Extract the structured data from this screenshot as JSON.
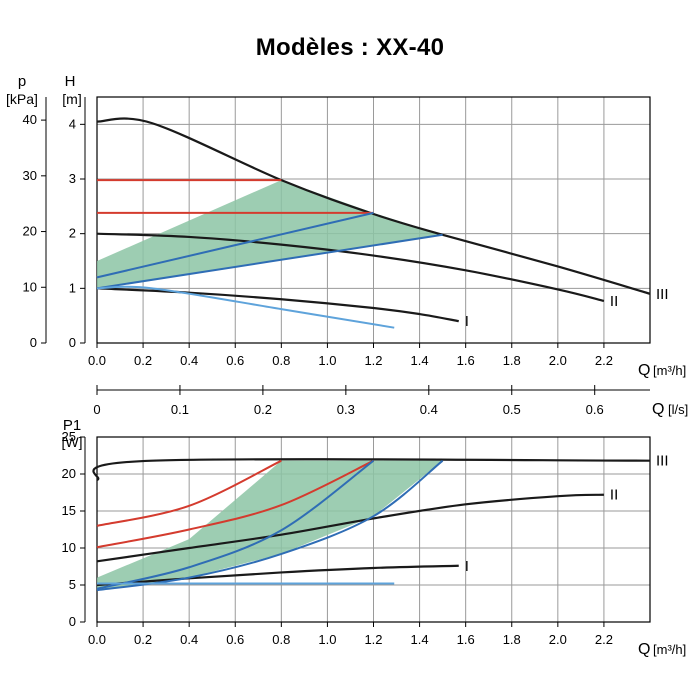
{
  "title": "Modèles : XX-40",
  "chart_data": [
    {
      "type": "line",
      "name": "head-curve",
      "x_label": "Q",
      "x_unit": "[m³/h]",
      "x_ticks": [
        "0.0",
        "0.2",
        "0.4",
        "0.6",
        "0.8",
        "1.0",
        "1.2",
        "1.4",
        "1.6",
        "1.8",
        "2.0",
        "2.2"
      ],
      "xlim": [
        0,
        2.4
      ],
      "y_label": "H",
      "y_unit": "[m]",
      "y_ticks": [
        "0",
        "1",
        "2",
        "3",
        "4"
      ],
      "ylim": [
        0,
        4.5
      ],
      "y2_label": "p",
      "y2_unit": "[kPa]",
      "y2_ticks": [
        "0",
        "10",
        "20",
        "30",
        "40"
      ],
      "series": [
        {
          "name": "III",
          "kind": "fixed-speed",
          "color": "#1a1a1a",
          "points": [
            [
              0,
              4.05
            ],
            [
              0.24,
              4.02
            ],
            [
              0.8,
              2.98
            ],
            [
              1.2,
              2.36
            ],
            [
              1.5,
              1.98
            ],
            [
              2.0,
              1.4
            ],
            [
              2.4,
              0.9
            ]
          ]
        },
        {
          "name": "II",
          "kind": "fixed-speed",
          "color": "#1a1a1a",
          "points": [
            [
              0,
              2.0
            ],
            [
              0.4,
              1.94
            ],
            [
              0.8,
              1.8
            ],
            [
              1.2,
              1.6
            ],
            [
              1.6,
              1.33
            ],
            [
              2.0,
              0.98
            ],
            [
              2.2,
              0.77
            ]
          ]
        },
        {
          "name": "I",
          "kind": "fixed-speed",
          "color": "#1a1a1a",
          "points": [
            [
              0,
              1.0
            ],
            [
              0.4,
              0.92
            ],
            [
              0.8,
              0.8
            ],
            [
              1.2,
              0.64
            ],
            [
              1.4,
              0.53
            ],
            [
              1.57,
              0.4
            ]
          ]
        },
        {
          "name": "constant-pressure-high",
          "kind": "constant-pressure",
          "color": "#d43b2e",
          "points": [
            [
              0,
              2.98
            ],
            [
              0.8,
              2.98
            ]
          ]
        },
        {
          "name": "constant-pressure-low",
          "kind": "constant-pressure",
          "color": "#d43b2e",
          "points": [
            [
              0,
              2.38
            ],
            [
              1.2,
              2.38
            ]
          ]
        },
        {
          "name": "proportional-high",
          "kind": "proportional-pressure",
          "color": "#2f6db5",
          "points": [
            [
              0,
              1.2
            ],
            [
              1.2,
              2.38
            ]
          ]
        },
        {
          "name": "proportional-low",
          "kind": "proportional-pressure",
          "color": "#2f6db5",
          "points": [
            [
              0,
              1.0
            ],
            [
              1.5,
              1.98
            ]
          ]
        },
        {
          "name": "autoadapt-min",
          "kind": "minimum-curve",
          "color": "#5ea3db",
          "points": [
            [
              0,
              1.0
            ],
            [
              0.24,
              1.0
            ],
            [
              0.8,
              0.62
            ],
            [
              1.29,
              0.28
            ]
          ]
        }
      ],
      "area": {
        "name": "autoadapt-area",
        "color": "#8cc4a4",
        "points": [
          [
            0,
            1.5
          ],
          [
            0.8,
            2.98
          ],
          [
            1.2,
            2.38
          ],
          [
            1.5,
            1.98
          ],
          [
            0,
            1.0
          ]
        ]
      },
      "curve_labels": [
        "I",
        "II",
        "III"
      ]
    },
    {
      "type": "axis",
      "name": "flow-ls-axis",
      "x_label": "Q",
      "x_unit": "[l/s]",
      "x_ticks": [
        "0",
        "0.1",
        "0.2",
        "0.3",
        "0.4",
        "0.5",
        "0.6"
      ],
      "xlim": [
        0,
        0.6667
      ]
    },
    {
      "type": "line",
      "name": "power-curve",
      "x_label": "Q",
      "x_unit": "[m³/h]",
      "x_ticks": [
        "0.0",
        "0.2",
        "0.4",
        "0.6",
        "0.8",
        "1.0",
        "1.2",
        "1.4",
        "1.6",
        "1.8",
        "2.0",
        "2.2"
      ],
      "xlim": [
        0,
        2.4
      ],
      "y_label": "P1",
      "y_unit": "[W]",
      "y_ticks": [
        "0",
        "5",
        "10",
        "15",
        "20",
        "25"
      ],
      "ylim": [
        0,
        25
      ],
      "series": [
        {
          "name": "III",
          "kind": "fixed-speed",
          "color": "#1a1a1a",
          "points": [
            [
              0,
              19.2
            ],
            [
              0.24,
              21.8
            ],
            [
              2.4,
              21.8
            ]
          ]
        },
        {
          "name": "II",
          "kind": "fixed-speed",
          "color": "#1a1a1a",
          "points": [
            [
              0,
              8.2
            ],
            [
              0.4,
              10.0
            ],
            [
              0.8,
              11.8
            ],
            [
              1.2,
              14.0
            ],
            [
              1.6,
              15.9
            ],
            [
              2.0,
              17.0
            ],
            [
              2.2,
              17.2
            ]
          ]
        },
        {
          "name": "I",
          "kind": "fixed-speed",
          "color": "#1a1a1a",
          "points": [
            [
              0,
              5.0
            ],
            [
              0.4,
              5.9
            ],
            [
              0.8,
              6.7
            ],
            [
              1.2,
              7.3
            ],
            [
              1.57,
              7.6
            ]
          ]
        },
        {
          "name": "constant-pressure-high",
          "kind": "constant-pressure",
          "color": "#d43b2e",
          "points": [
            [
              0,
              13.0
            ],
            [
              0.4,
              15.7
            ],
            [
              0.8,
              21.8
            ]
          ]
        },
        {
          "name": "constant-pressure-low",
          "kind": "constant-pressure",
          "color": "#d43b2e",
          "points": [
            [
              0,
              10.1
            ],
            [
              0.4,
              12.5
            ],
            [
              0.8,
              15.8
            ],
            [
              1.2,
              21.8
            ]
          ]
        },
        {
          "name": "proportional-high",
          "kind": "proportional-pressure",
          "color": "#2f6db5",
          "points": [
            [
              0,
              4.5
            ],
            [
              0.4,
              7.4
            ],
            [
              0.8,
              12.4
            ],
            [
              1.2,
              21.8
            ]
          ]
        },
        {
          "name": "proportional-low",
          "kind": "proportional-pressure",
          "color": "#2f6db5",
          "points": [
            [
              0,
              4.3
            ],
            [
              0.4,
              6.0
            ],
            [
              0.8,
              9.2
            ],
            [
              1.2,
              14.3
            ],
            [
              1.5,
              21.8
            ]
          ]
        },
        {
          "name": "autoadapt-min",
          "kind": "minimum-curve",
          "color": "#5ea3db",
          "points": [
            [
              0,
              5.2
            ],
            [
              1.29,
              5.2
            ]
          ]
        }
      ],
      "area": {
        "name": "autoadapt-area",
        "color": "#8cc4a4",
        "points": [
          [
            0,
            6.0
          ],
          [
            0.4,
            11.2
          ],
          [
            0.8,
            21.8
          ],
          [
            1.5,
            21.8
          ],
          [
            1.2,
            14.3
          ],
          [
            0.8,
            9.2
          ],
          [
            0.4,
            6.0
          ],
          [
            0,
            4.3
          ]
        ]
      },
      "curve_labels": [
        "I",
        "II",
        "III"
      ]
    }
  ]
}
